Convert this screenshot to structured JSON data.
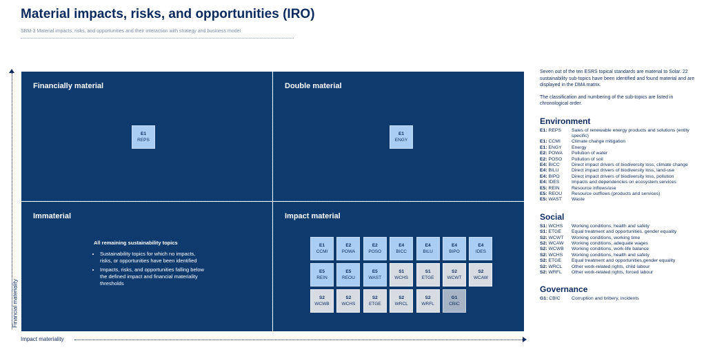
{
  "header": {
    "title": "Material impacts, risks, and opportunities (IRO)",
    "subtitle": "SBM-3 Material impacts, risks, and opportunities and their interaction with strategy and business model"
  },
  "axes": {
    "y_label": "Financial materiality",
    "x_label": "Impact materiality"
  },
  "quadrants": {
    "financial": {
      "title": "Financially material",
      "tiles": [
        {
          "std": "E1",
          "code": "REPS"
        }
      ]
    },
    "double": {
      "title": "Double material",
      "tiles": [
        {
          "std": "E1",
          "code": "ENGY"
        }
      ]
    },
    "immaterial": {
      "title": "Immaterial",
      "heading": "All remaining sustainability topics",
      "bullets": [
        "Sustainability topics for which no impacts, risks, or opportunities have been identified",
        "Impacts, risks, and opportunities falling below the defined impact and financial materiality thresholds"
      ]
    },
    "impact": {
      "title": "Impact material",
      "tiles": [
        {
          "std": "E1",
          "code": "CCMI"
        },
        {
          "std": "E2",
          "code": "POWA"
        },
        {
          "std": "E2",
          "code": "POSO"
        },
        {
          "std": "E4",
          "code": "BICC"
        },
        {
          "std": "E4",
          "code": "BILU"
        },
        {
          "std": "E4",
          "code": "BIPO"
        },
        {
          "std": "E4",
          "code": "IDES"
        },
        {
          "std": "E5",
          "code": "REIN"
        },
        {
          "std": "E5",
          "code": "REOU"
        },
        {
          "std": "E5",
          "code": "WAST"
        },
        {
          "std": "S1",
          "code": "WCHS"
        },
        {
          "std": "S1",
          "code": "ETGE"
        },
        {
          "std": "S2",
          "code": "WCWT"
        },
        {
          "std": "S2",
          "code": "WCAW"
        },
        {
          "std": "S2",
          "code": "WCWB"
        },
        {
          "std": "S2",
          "code": "WCHS"
        },
        {
          "std": "S2",
          "code": "ETGE"
        },
        {
          "std": "S2",
          "code": "WRCL"
        },
        {
          "std": "S2",
          "code": "WRFL"
        },
        {
          "std": "G1",
          "code": "CBIC"
        }
      ]
    }
  },
  "legend": {
    "intro1": "Seven out of the ten ESRS topical standards are material to Solar. 22 sustainability sub-topics have been identified and found material and are displayed in the DMA matrix.",
    "intro2": "The classification and numbering of the sub-topics are listed in chronological order.",
    "environment": {
      "heading": "Environment",
      "items": [
        {
          "std": "E1:",
          "code": "REPS",
          "desc": "Sales of renewable energy products and solutions (entity specific)"
        },
        {
          "std": "E1:",
          "code": "CCMI",
          "desc": "Climate change mitigation"
        },
        {
          "std": "E1:",
          "code": "ENGY",
          "desc": "Energy"
        },
        {
          "std": "E2:",
          "code": "POWA",
          "desc": "Pollution of water"
        },
        {
          "std": "E2:",
          "code": "POSO",
          "desc": "Pollution of soil"
        },
        {
          "std": "E4:",
          "code": "BICC",
          "desc": "Direct impact drivers of biodiversity loss, climate change"
        },
        {
          "std": "E4:",
          "code": "BILU",
          "desc": "Direct impact drivers of biodiversity loss, land-use"
        },
        {
          "std": "E4:",
          "code": "BIPO",
          "desc": "Direct impact drivers of biodiversity loss, pollution"
        },
        {
          "std": "E4:",
          "code": "IDES",
          "desc": "Impacts and dependencies on ecosystem services"
        },
        {
          "std": "E5:",
          "code": "REIN",
          "desc": "Resource inflows/use"
        },
        {
          "std": "E5:",
          "code": "REOU",
          "desc": "Resource outflows (products and services)"
        },
        {
          "std": "E5:",
          "code": "WAST",
          "desc": "Waste"
        }
      ]
    },
    "social": {
      "heading": "Social",
      "items": [
        {
          "std": "S1:",
          "code": "WCHS",
          "desc": "Working conditions, health and safety"
        },
        {
          "std": "S1:",
          "code": "ETGE",
          "desc": "Equal treatment and opportunities, gender equality"
        },
        {
          "std": "S2:",
          "code": "WCWT",
          "desc": "Working conditions, working time"
        },
        {
          "std": "S2:",
          "code": "WCAW",
          "desc": "Working conditions, adequate wages"
        },
        {
          "std": "S2:",
          "code": "WCWB",
          "desc": "Working conditions, work-life balance"
        },
        {
          "std": "S2:",
          "code": "WCHS",
          "desc": "Working conditions, health and safety"
        },
        {
          "std": "S2:",
          "code": "ETGE",
          "desc": "Equal treatment and opportunities,gender equality"
        },
        {
          "std": "S2:",
          "code": "WRCL",
          "desc": "Other work-related rights, child labour"
        },
        {
          "std": "S2:",
          "code": "WRFL",
          "desc": "Other work-related rights, forced labour"
        }
      ]
    },
    "governance": {
      "heading": "Governance",
      "items": [
        {
          "std": "G1:",
          "code": "CBIC",
          "desc": "Corruption and bribery, incidents"
        }
      ]
    }
  }
}
